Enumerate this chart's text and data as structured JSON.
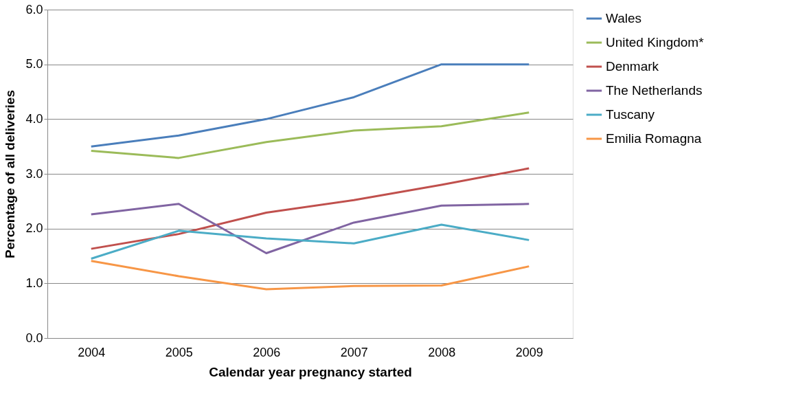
{
  "chart_data": {
    "type": "line",
    "xlabel": "Calendar year pregnancy started",
    "ylabel": "Percentage of all deliveries",
    "categories": [
      "2004",
      "2005",
      "2006",
      "2007",
      "2008",
      "2009"
    ],
    "series": [
      {
        "name": "Wales",
        "color": "#4a7ebb",
        "values": [
          3.5,
          3.7,
          4.0,
          4.4,
          5.0,
          5.0
        ]
      },
      {
        "name": "United Kingdom*",
        "color": "#9bbb59",
        "values": [
          3.42,
          3.29,
          3.58,
          3.79,
          3.87,
          4.12
        ]
      },
      {
        "name": "Denmark",
        "color": "#c0504d",
        "values": [
          1.63,
          1.9,
          2.29,
          2.52,
          2.8,
          3.1
        ]
      },
      {
        "name": "The Netherlands",
        "color": "#8064a2",
        "values": [
          2.26,
          2.45,
          1.55,
          2.11,
          2.42,
          2.45
        ]
      },
      {
        "name": "Tuscany",
        "color": "#4bacc6",
        "values": [
          1.45,
          1.96,
          1.82,
          1.73,
          2.07,
          1.79
        ]
      },
      {
        "name": "Emilia Romagna",
        "color": "#f79646",
        "values": [
          1.41,
          1.13,
          0.89,
          0.95,
          0.96,
          1.31
        ]
      }
    ],
    "ylim": [
      0,
      6
    ],
    "yticks": [
      {
        "value": 0,
        "label": "0.0"
      },
      {
        "value": 1,
        "label": "1.0"
      },
      {
        "value": 2,
        "label": "2.0"
      },
      {
        "value": 3,
        "label": "3.0"
      },
      {
        "value": 4,
        "label": "4.0"
      },
      {
        "value": 5,
        "label": "5.0"
      },
      {
        "value": 6,
        "label": "6.0"
      }
    ],
    "grid": "y",
    "legend": "right",
    "marker": "none",
    "line_style": "solid"
  }
}
